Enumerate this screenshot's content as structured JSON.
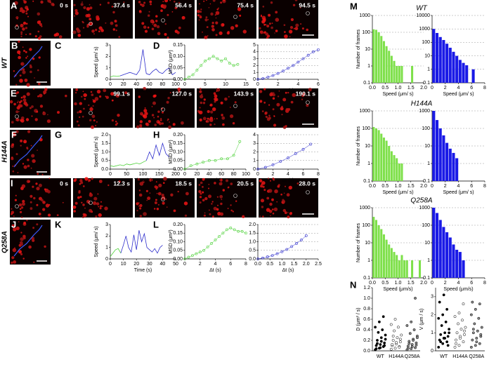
{
  "panels": {
    "letters": [
      "A",
      "B",
      "C",
      "D",
      "E",
      "F",
      "G",
      "H",
      "I",
      "J",
      "K",
      "L",
      "M",
      "N"
    ],
    "genotypes": [
      "WT",
      "H144A",
      "Q258A"
    ],
    "frames_A": [
      "0 s",
      "37.4 s",
      "56.4 s",
      "75.4 s",
      "94.5 s"
    ],
    "frames_E": [
      "99.1 s",
      "127.0 s",
      "143.9 s",
      "190.1 s"
    ],
    "frames_I": [
      "0 s",
      "12.3 s",
      "18.5 s",
      "20.5 s",
      "28.0 s"
    ]
  },
  "chart_data": [
    {
      "type": "line",
      "xlabel": "Time (s)",
      "ylabel": "Speed (μm/ s)",
      "xlim": [
        0,
        100
      ],
      "xticks": [
        0,
        20,
        40,
        60,
        80,
        100
      ],
      "ylim": [
        0,
        3
      ],
      "yticks": [
        0,
        1,
        2,
        3
      ],
      "x": [
        0,
        5,
        10,
        15,
        20,
        25,
        30,
        35,
        40,
        45,
        50,
        55,
        60,
        65,
        70,
        75,
        80,
        85,
        90,
        95,
        100
      ],
      "series": [
        {
          "color": "#4cd137",
          "values": [
            0.2,
            0.3,
            0.25,
            0.3,
            null,
            null,
            null,
            null,
            null,
            null,
            null,
            null,
            null,
            null,
            null,
            null,
            null,
            null,
            null,
            null,
            null
          ]
        },
        {
          "color": "#2d2dcc",
          "values": [
            null,
            null,
            null,
            0.3,
            0.4,
            0.5,
            0.6,
            0.5,
            0.4,
            0.8,
            2.6,
            0.5,
            0.4,
            0.7,
            0.9,
            0.6,
            0.5,
            0.8,
            1.0,
            0.4,
            0.6
          ]
        }
      ]
    },
    {
      "type": "line",
      "markers": true,
      "xlabel": "Δt (s)",
      "ylabel": "MSD (μm²)",
      "xlim": [
        0,
        15
      ],
      "xticks": [
        0,
        5,
        10,
        15
      ],
      "ylim": [
        0,
        0.15
      ],
      "yticks": [
        {
          "value": 0,
          "label": "0.00"
        },
        0.05,
        {
          "value": 0.1,
          "label": "0.10"
        },
        0.15
      ],
      "x": [
        0,
        1,
        2,
        3,
        4,
        5,
        6,
        7,
        8,
        9,
        10,
        11,
        12,
        13
      ],
      "series": [
        {
          "color": "#4cd137",
          "values": [
            0,
            0.01,
            0.02,
            0.04,
            0.06,
            0.08,
            0.09,
            0.1,
            0.09,
            0.08,
            0.09,
            0.07,
            0.06,
            0.065
          ]
        }
      ]
    },
    {
      "type": "line",
      "markers": true,
      "grid": true,
      "xlabel": "Δt (s)",
      "xlim": [
        0,
        6
      ],
      "xticks": [
        0,
        2,
        4,
        6
      ],
      "ylim": [
        0,
        5
      ],
      "yticks": [
        0,
        1,
        2,
        3,
        4,
        5
      ],
      "x": [
        0,
        0.5,
        1,
        1.5,
        2,
        2.5,
        3,
        3.5,
        4,
        4.5,
        5,
        5.5,
        6
      ],
      "series": [
        {
          "color": "#2d2dcc",
          "values": [
            0,
            0.1,
            0.3,
            0.55,
            0.85,
            1.2,
            1.6,
            2.0,
            2.5,
            3.0,
            3.5,
            4.0,
            4.3
          ]
        }
      ]
    },
    {
      "type": "line",
      "xlabel": "Time (s)",
      "ylabel": "Speed (μm/ s)",
      "xlim": [
        0,
        200
      ],
      "xticks": [
        0,
        50,
        100,
        150,
        200
      ],
      "ylim": [
        0,
        2
      ],
      "yticks": [
        {
          "value": 0,
          "label": "0.0"
        },
        0.5,
        {
          "value": 1,
          "label": "1.0"
        },
        1.5,
        {
          "value": 2,
          "label": "2.0"
        }
      ],
      "x": [
        0,
        10,
        20,
        30,
        40,
        50,
        60,
        70,
        80,
        90,
        100,
        110,
        120,
        130,
        140,
        150,
        160,
        170,
        180
      ],
      "series": [
        {
          "color": "#4cd137",
          "values": [
            0.2,
            0.15,
            0.2,
            0.25,
            0.2,
            0.3,
            0.25,
            0.3,
            0.35,
            0.3,
            0.4,
            0.5,
            null,
            null,
            null,
            null,
            null,
            null,
            null
          ]
        },
        {
          "color": "#2d2dcc",
          "values": [
            null,
            null,
            null,
            null,
            null,
            null,
            null,
            null,
            null,
            null,
            null,
            0.5,
            1.0,
            0.6,
            1.4,
            0.8,
            1.5,
            0.9,
            0.7
          ]
        }
      ]
    },
    {
      "type": "line",
      "markers": true,
      "xlabel": "Δt (s)",
      "ylabel": "MSD (μm²)",
      "xlim": [
        0,
        100
      ],
      "xticks": [
        0,
        20,
        40,
        60,
        80,
        100
      ],
      "ylim": [
        0,
        0.2
      ],
      "yticks": [
        {
          "value": 0,
          "label": "0.00"
        },
        0.05,
        {
          "value": 0.1,
          "label": "0.10"
        },
        0.15,
        {
          "value": 0.2,
          "label": "0.20"
        }
      ],
      "x": [
        0,
        10,
        20,
        30,
        40,
        50,
        60,
        70,
        80,
        90
      ],
      "series": [
        {
          "color": "#4cd137",
          "values": [
            0,
            0.02,
            0.03,
            0.04,
            0.05,
            0.05,
            0.06,
            0.06,
            0.08,
            0.16
          ]
        }
      ]
    },
    {
      "type": "line",
      "markers": true,
      "grid": true,
      "xlabel": "Δt (s)",
      "xlim": [
        0,
        8
      ],
      "xticks": [
        0,
        2,
        4,
        6,
        8
      ],
      "ylim": [
        0,
        4
      ],
      "yticks": [
        0,
        1,
        2,
        3,
        4
      ],
      "x": [
        0,
        1,
        2,
        3,
        4,
        5,
        6,
        7
      ],
      "series": [
        {
          "color": "#2d2dcc",
          "values": [
            0,
            0.2,
            0.5,
            0.9,
            1.3,
            1.8,
            2.3,
            2.9
          ]
        }
      ]
    },
    {
      "type": "line",
      "xlabel": "Time (s)",
      "ylabel": "Speed (μm/ s)",
      "xlim": [
        0,
        50
      ],
      "xticks": [
        0,
        10,
        20,
        30,
        40,
        50
      ],
      "ylim": [
        0,
        3
      ],
      "yticks": [
        0,
        1,
        2,
        3
      ],
      "x": [
        0,
        2,
        4,
        6,
        8,
        10,
        12,
        14,
        16,
        18,
        20,
        22,
        24,
        26,
        28,
        30,
        32,
        34,
        36,
        38,
        40
      ],
      "series": [
        {
          "color": "#4cd137",
          "values": [
            0.2,
            0.5,
            0.8,
            0.9,
            0.5,
            null,
            null,
            null,
            null,
            null,
            null,
            null,
            null,
            null,
            null,
            null,
            null,
            null,
            null,
            null,
            null
          ]
        },
        {
          "color": "#2d2dcc",
          "values": [
            null,
            null,
            null,
            null,
            0.5,
            1.2,
            2.0,
            1.0,
            0.6,
            2.1,
            0.8,
            2.5,
            1.5,
            2.2,
            1.0,
            0.8,
            0.6,
            0.9,
            0.5,
            1.0,
            1.2
          ]
        }
      ]
    },
    {
      "type": "line",
      "markers": true,
      "xlabel": "Δt (s)",
      "ylabel": "MSD (μm²)",
      "xlim": [
        0,
        8
      ],
      "xticks": [
        0,
        2,
        4,
        6,
        8
      ],
      "ylim": [
        0,
        0.2
      ],
      "yticks": [
        {
          "value": 0,
          "label": "0.00"
        },
        0.05,
        {
          "value": 0.1,
          "label": "0.10"
        },
        0.15,
        {
          "value": 0.2,
          "label": "0.20"
        }
      ],
      "x": [
        0,
        0.5,
        1,
        1.5,
        2,
        2.5,
        3,
        3.5,
        4,
        4.5,
        5,
        5.5,
        6,
        6.5,
        7,
        7.5,
        8
      ],
      "series": [
        {
          "color": "#4cd137",
          "values": [
            0,
            0.01,
            0.02,
            0.03,
            0.04,
            0.05,
            0.07,
            0.09,
            0.11,
            0.13,
            0.15,
            0.17,
            0.18,
            0.17,
            0.16,
            0.16,
            0.15
          ]
        }
      ]
    },
    {
      "type": "line",
      "markers": true,
      "grid": true,
      "xlabel": "Δt (s)",
      "xlim": [
        0,
        2.5
      ],
      "xticks": [
        {
          "value": 0,
          "label": "0.0"
        },
        0.5,
        {
          "value": 1,
          "label": "1.0"
        },
        1.5,
        {
          "value": 2,
          "label": "2.0"
        },
        2.5
      ],
      "ylim": [
        0,
        2
      ],
      "yticks": [
        {
          "value": 0,
          "label": "0.0"
        },
        0.5,
        {
          "value": 1,
          "label": "1.0"
        },
        1.5,
        {
          "value": 2,
          "label": "2.0"
        }
      ],
      "x": [
        0,
        0.2,
        0.4,
        0.6,
        0.8,
        1,
        1.2,
        1.4,
        1.6,
        1.8,
        2
      ],
      "series": [
        {
          "color": "#2d2dcc",
          "values": [
            0,
            0.05,
            0.12,
            0.2,
            0.3,
            0.42,
            0.55,
            0.72,
            0.9,
            1.1,
            1.35
          ]
        }
      ]
    },
    {
      "type": "histogram",
      "title": "WT",
      "log": true,
      "grid": true,
      "color": "#7ee04a",
      "xlabel": "Speed (μm/ s)",
      "ylabel": "Number of frames",
      "xlim": [
        0,
        2
      ],
      "xticks": [
        {
          "value": 0,
          "label": "0.0"
        },
        0.5,
        {
          "value": 1,
          "label": "1.0"
        },
        1.5,
        {
          "value": 2,
          "label": "2.0"
        }
      ],
      "ylim": [
        0.1,
        1000
      ],
      "yticks": [
        0.1,
        1,
        10,
        100,
        1000
      ],
      "bins": [
        0,
        0.1,
        0.2,
        0.3,
        0.4,
        0.5,
        0.6,
        0.7,
        0.8,
        0.9,
        1,
        1.1,
        1.2,
        1.3,
        1.4,
        1.5,
        1.6,
        1.7,
        1.8,
        1.9,
        2
      ],
      "values": [
        150,
        140,
        100,
        60,
        30,
        15,
        8,
        4,
        2,
        1,
        1,
        1,
        0,
        0,
        0,
        1,
        0,
        0,
        0,
        0
      ]
    },
    {
      "type": "histogram",
      "log": true,
      "grid": true,
      "color": "#1a1ae6",
      "xlabel": "Speed (μm/ s)",
      "xlim": [
        0,
        8
      ],
      "xticks": [
        0,
        2,
        4,
        6,
        8
      ],
      "ylim": [
        0.1,
        10000
      ],
      "yticks": [
        0.1,
        1,
        10,
        100,
        1000,
        10000
      ],
      "bins": [
        0,
        0.5,
        1,
        1.5,
        2,
        2.5,
        3,
        3.5,
        4,
        4.5,
        5,
        5.5,
        6,
        6.5
      ],
      "values": [
        1000,
        500,
        250,
        150,
        80,
        40,
        20,
        10,
        5,
        3,
        2,
        0,
        1
      ]
    },
    {
      "type": "histogram",
      "title": "H144A",
      "log": true,
      "grid": true,
      "color": "#7ee04a",
      "xlabel": "Speed (μm/ s)",
      "ylabel": "Number of frames",
      "xlim": [
        0,
        2
      ],
      "xticks": [
        {
          "value": 0,
          "label": "0.0"
        },
        0.5,
        {
          "value": 1,
          "label": "1.0"
        },
        1.5,
        {
          "value": 2,
          "label": "2.0"
        }
      ],
      "ylim": [
        0.1,
        1000
      ],
      "yticks": [
        0.1,
        1,
        10,
        100,
        1000
      ],
      "bins": [
        0,
        0.1,
        0.2,
        0.3,
        0.4,
        0.5,
        0.6,
        0.7,
        0.8,
        0.9,
        1,
        1.1,
        1.2,
        1.3,
        1.4,
        1.5,
        1.6,
        1.7,
        1.8,
        1.9,
        2
      ],
      "values": [
        120,
        100,
        80,
        50,
        30,
        20,
        10,
        5,
        3,
        2,
        1,
        1,
        0,
        0,
        0,
        0,
        0,
        0,
        0,
        0
      ]
    },
    {
      "type": "histogram",
      "log": true,
      "grid": true,
      "color": "#1a1ae6",
      "xlabel": "Speed (μm/ s)",
      "xlim": [
        0,
        8
      ],
      "xticks": [
        0,
        2,
        4,
        6,
        8
      ],
      "ylim": [
        0.1,
        1000
      ],
      "yticks": [
        0.1,
        1,
        10,
        100,
        1000
      ],
      "bins": [
        0,
        0.5,
        1,
        1.5,
        2,
        2.5,
        3,
        3.5,
        4
      ],
      "values": [
        1000,
        300,
        100,
        40,
        15,
        7,
        4,
        2
      ]
    },
    {
      "type": "histogram",
      "title": "Q258A",
      "log": true,
      "grid": true,
      "color": "#7ee04a",
      "xlabel": "Speed (μm/s)",
      "ylabel": "Number of frames",
      "xlim": [
        0,
        2
      ],
      "xticks": [
        {
          "value": 0,
          "label": "0.0"
        },
        0.5,
        {
          "value": 1,
          "label": "1.0"
        },
        1.5,
        {
          "value": 2,
          "label": "2.0"
        }
      ],
      "ylim": [
        0.1,
        1000
      ],
      "yticks": [
        0.1,
        1,
        10,
        100,
        1000
      ],
      "bins": [
        0,
        0.1,
        0.2,
        0.3,
        0.4,
        0.5,
        0.6,
        0.7,
        0.8,
        0.9,
        1,
        1.1,
        1.2,
        1.3,
        1.4,
        1.5,
        1.6,
        1.7,
        1.8,
        1.9,
        2
      ],
      "values": [
        300,
        200,
        100,
        60,
        30,
        15,
        8,
        5,
        3,
        2,
        1,
        2,
        1,
        1,
        0,
        1,
        0,
        0,
        1,
        0
      ]
    },
    {
      "type": "histogram",
      "log": true,
      "grid": true,
      "color": "#1a1ae6",
      "xlabel": "Speed (μm/s)",
      "xlim": [
        0,
        8
      ],
      "xticks": [
        0,
        2,
        4,
        6,
        8
      ],
      "ylim": [
        0.1,
        1000
      ],
      "yticks": [
        0.1,
        1,
        10,
        100,
        1000
      ],
      "bins": [
        0,
        0.5,
        1,
        1.5,
        2,
        2.5,
        3,
        3.5,
        4,
        4.5,
        5
      ],
      "values": [
        1000,
        500,
        200,
        80,
        40,
        20,
        8,
        4,
        3,
        1
      ]
    },
    {
      "type": "strip",
      "ylabel": "D (μm² / s)",
      "categories": [
        "WT",
        "H144A",
        "Q258A"
      ],
      "colors": [
        "#000000",
        "#ffffff",
        "#888888"
      ],
      "ylim": [
        0,
        1.2
      ],
      "yticks": [
        {
          "value": 0,
          "label": "0.0"
        },
        0.2,
        0.4,
        0.6,
        0.8,
        {
          "value": 1,
          "label": "1.0"
        },
        1.2
      ],
      "values": [
        [
          0.02,
          0.05,
          0.08,
          0.1,
          0.12,
          0.15,
          0.2,
          0.25,
          0.3,
          0.35,
          0.4,
          0.45,
          0.55,
          0.65,
          0.04,
          0.06,
          0.1,
          0.14,
          0.18,
          0.22
        ],
        [
          0.03,
          0.05,
          0.08,
          0.1,
          0.13,
          0.17,
          0.2,
          0.25,
          0.3,
          0.38,
          0.45,
          0.5,
          0.6,
          0.07,
          0.12,
          0.16,
          0.22,
          0.28
        ],
        [
          0.02,
          0.04,
          0.06,
          0.09,
          0.12,
          0.15,
          0.18,
          0.22,
          0.28,
          0.33,
          0.4,
          0.48,
          0.55,
          1.0,
          0.05,
          0.08,
          0.11,
          0.14,
          0.2,
          0.25
        ]
      ]
    },
    {
      "type": "strip",
      "ylabel": "V (μm / s)",
      "categories": [
        "WT",
        "H144A",
        "Q258A"
      ],
      "colors": [
        "#000000",
        "#ffffff",
        "#888888"
      ],
      "ylim": [
        0,
        3.5
      ],
      "yticks": [
        0,
        1,
        2,
        3
      ],
      "values": [
        [
          0.2,
          0.4,
          0.5,
          0.6,
          0.7,
          0.8,
          0.9,
          1.0,
          1.2,
          1.4,
          1.6,
          1.8,
          2.0,
          2.3,
          2.7,
          3.1,
          0.3,
          0.5,
          0.7,
          1.0
        ],
        [
          0.2,
          0.3,
          0.5,
          0.6,
          0.8,
          0.9,
          1.0,
          1.2,
          1.3,
          1.5,
          1.7,
          1.9,
          2.1,
          2.6,
          0.4,
          0.7,
          1.1
        ],
        [
          0.2,
          0.3,
          0.4,
          0.6,
          0.7,
          0.8,
          1.0,
          1.1,
          1.3,
          1.5,
          1.8,
          2.0,
          2.3,
          2.6,
          2.7,
          0.5,
          0.9,
          1.2
        ]
      ]
    }
  ]
}
